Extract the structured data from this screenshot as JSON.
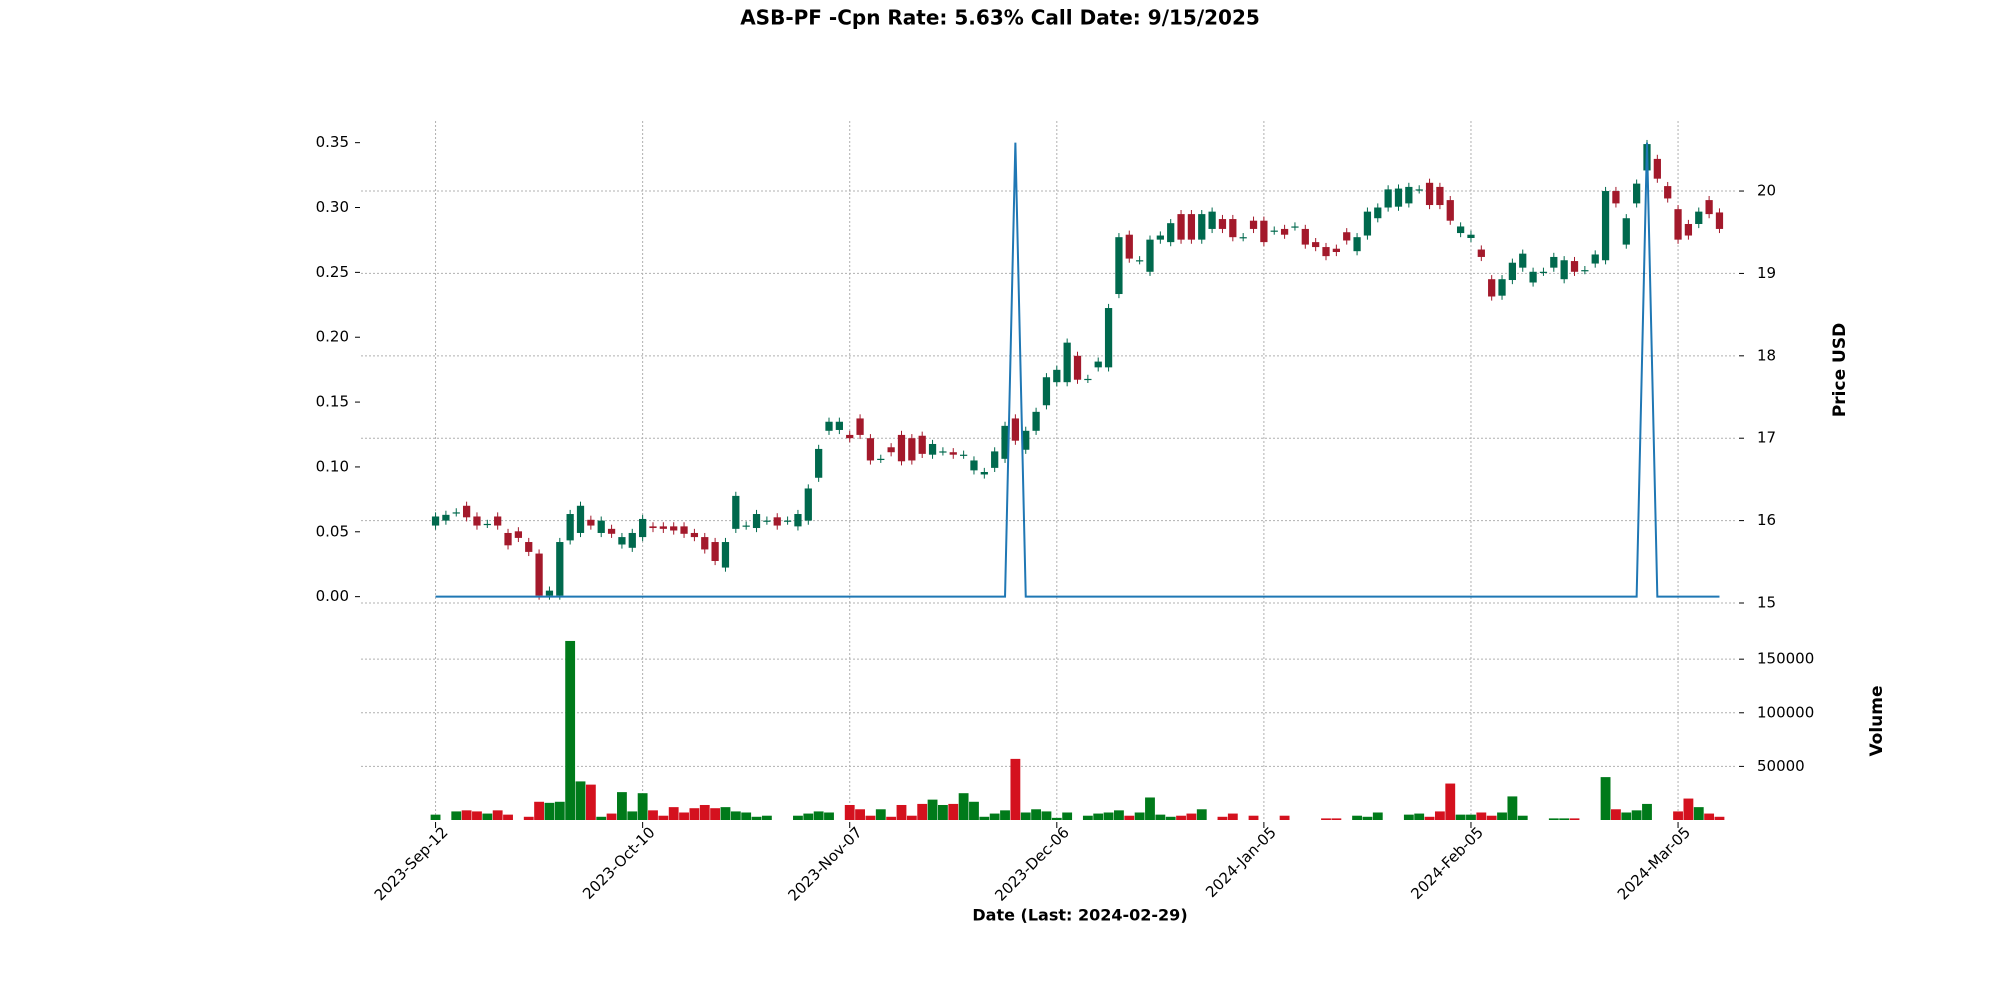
{
  "chart_data": {
    "type": "candlestick",
    "title": "ASB-PF -Cpn Rate: 5.63% Call Date: 9/15/2025",
    "xlabel": "Date   (Last: 2024-02-29)",
    "ylabel": "Price USD",
    "xlim": [
      -7.2,
      125.5
    ],
    "xticks": [
      {
        "value": 0,
        "label": "2023-Sep-12"
      },
      {
        "value": 20,
        "label": "2023-Oct-10"
      },
      {
        "value": 40,
        "label": "2023-Nov-07"
      },
      {
        "value": 60,
        "label": "2023-Dec-06"
      },
      {
        "value": 80,
        "label": "2024-Jan-05"
      },
      {
        "value": 100,
        "label": "2024-Feb-05"
      },
      {
        "value": 120,
        "label": "2024-Mar-05"
      }
    ],
    "ylim": [
      15,
      20.85
    ],
    "yticks": [
      15,
      16,
      17,
      18,
      19,
      20
    ],
    "grid": true,
    "up_color": "#00694d",
    "down_color": "#a3192b",
    "open": [
      15.94,
      16.0,
      16.1,
      16.18,
      16.05,
      15.96,
      16.05,
      15.85,
      15.87,
      15.74,
      15.6,
      15.09,
      15.09,
      15.76,
      15.85,
      16.01,
      15.85,
      15.9,
      15.71,
      15.67,
      15.8,
      15.93,
      15.93,
      15.93,
      15.93,
      15.85,
      15.8,
      15.74,
      15.43,
      15.9,
      15.94,
      15.91,
      16.0,
      16.04,
      16.0,
      15.93,
      16.0,
      16.52,
      17.09,
      17.1,
      17.04,
      17.24,
      17.0,
      16.75,
      16.89,
      17.04,
      17.0,
      17.03,
      16.8,
      16.84,
      16.83,
      16.8,
      16.61,
      16.56,
      16.64,
      16.75,
      17.24,
      16.86,
      17.09,
      17.4,
      17.68,
      17.68,
      18.0,
      17.72,
      17.86,
      17.86,
      18.75,
      19.47,
      19.16,
      19.02,
      19.41,
      19.38,
      19.72,
      19.72,
      19.41,
      19.54,
      19.66,
      19.66,
      19.44,
      19.64,
      19.64,
      19.52,
      19.54,
      19.57,
      19.54,
      19.38,
      19.32,
      19.3,
      19.5,
      19.27,
      19.46,
      19.67,
      19.8,
      19.81,
      19.85,
      20.02,
      20.1,
      20.05,
      19.89,
      19.49,
      19.43,
      19.29,
      18.93,
      18.73,
      18.92,
      19.07,
      18.89,
      19.02,
      19.07,
      18.93,
      19.15,
      19.04,
      19.12,
      19.16,
      20.0,
      19.35,
      19.85,
      20.25,
      20.39,
      20.06,
      19.78,
      19.6,
      19.6,
      19.89,
      19.74
    ],
    "high": [
      16.1,
      16.12,
      16.15,
      16.23,
      16.1,
      16.01,
      16.1,
      15.9,
      15.92,
      15.79,
      15.65,
      15.2,
      15.79,
      16.13,
      16.23,
      16.06,
      16.05,
      15.95,
      15.85,
      15.9,
      16.07,
      15.98,
      15.98,
      15.98,
      15.98,
      15.9,
      15.85,
      15.79,
      15.79,
      16.35,
      15.99,
      16.13,
      16.05,
      16.09,
      16.05,
      16.13,
      16.44,
      16.92,
      17.25,
      17.25,
      17.09,
      17.29,
      17.05,
      16.8,
      16.94,
      17.09,
      17.05,
      17.08,
      16.98,
      16.89,
      16.88,
      16.85,
      16.78,
      16.64,
      16.89,
      17.2,
      17.29,
      17.14,
      17.37,
      17.79,
      17.88,
      18.21,
      18.05,
      17.77,
      17.98,
      18.63,
      19.49,
      19.52,
      19.21,
      19.46,
      19.51,
      19.66,
      19.77,
      19.77,
      19.77,
      19.8,
      19.71,
      19.71,
      19.49,
      19.69,
      19.69,
      19.57,
      19.59,
      19.62,
      19.59,
      19.43,
      19.37,
      19.35,
      19.55,
      19.49,
      19.8,
      19.85,
      20.07,
      20.08,
      20.1,
      20.07,
      20.15,
      20.1,
      19.94,
      19.62,
      19.52,
      19.34,
      18.98,
      18.98,
      19.18,
      19.29,
      19.07,
      19.07,
      19.25,
      19.21,
      19.2,
      19.09,
      19.28,
      20.05,
      20.05,
      19.72,
      20.14,
      20.62,
      20.44,
      20.11,
      19.83,
      19.65,
      19.8,
      19.94,
      19.79
    ],
    "low": [
      15.89,
      15.95,
      16.05,
      15.99,
      15.89,
      15.91,
      15.89,
      15.65,
      15.74,
      15.57,
      15.04,
      15.04,
      15.04,
      15.71,
      15.8,
      15.89,
      15.8,
      15.79,
      15.66,
      15.62,
      15.75,
      15.86,
      15.85,
      15.83,
      15.79,
      15.75,
      15.6,
      15.46,
      15.38,
      15.85,
      15.89,
      15.86,
      15.95,
      15.89,
      15.95,
      15.88,
      15.95,
      16.47,
      17.04,
      17.05,
      16.95,
      16.99,
      16.68,
      16.7,
      16.78,
      16.67,
      16.68,
      16.76,
      16.75,
      16.79,
      16.75,
      16.75,
      16.56,
      16.51,
      16.59,
      16.7,
      16.92,
      16.81,
      17.04,
      17.35,
      17.63,
      17.63,
      17.66,
      17.67,
      17.81,
      17.81,
      18.7,
      19.13,
      19.11,
      18.97,
      19.36,
      19.33,
      19.36,
      19.36,
      19.36,
      19.49,
      19.49,
      19.39,
      19.39,
      19.49,
      19.33,
      19.47,
      19.42,
      19.52,
      19.3,
      19.27,
      19.16,
      19.21,
      19.35,
      19.22,
      19.41,
      19.62,
      19.75,
      19.76,
      19.8,
      19.97,
      19.78,
      19.78,
      19.59,
      19.44,
      19.38,
      19.15,
      18.67,
      18.68,
      18.87,
      19.02,
      18.84,
      18.97,
      19.02,
      18.88,
      18.97,
      18.99,
      19.07,
      19.11,
      19.8,
      19.3,
      19.8,
      20.2,
      20.1,
      19.86,
      19.36,
      19.41,
      19.55,
      19.67,
      19.49
    ],
    "close": [
      16.05,
      16.07,
      16.1,
      16.04,
      15.94,
      15.96,
      15.94,
      15.7,
      15.79,
      15.62,
      15.09,
      15.15,
      15.74,
      16.08,
      16.18,
      15.94,
      16.0,
      15.84,
      15.8,
      15.85,
      16.02,
      15.91,
      15.9,
      15.88,
      15.84,
      15.8,
      15.65,
      15.51,
      15.74,
      16.3,
      15.94,
      16.08,
      16.0,
      15.94,
      16.0,
      16.08,
      16.39,
      16.87,
      17.2,
      17.2,
      17.0,
      17.04,
      16.73,
      16.75,
      16.83,
      16.72,
      16.73,
      16.81,
      16.93,
      16.84,
      16.8,
      16.8,
      16.73,
      16.59,
      16.84,
      17.15,
      16.97,
      17.09,
      17.32,
      17.74,
      17.83,
      18.16,
      17.71,
      17.72,
      17.93,
      18.58,
      19.44,
      19.18,
      19.16,
      19.41,
      19.46,
      19.61,
      19.41,
      19.41,
      19.72,
      19.75,
      19.54,
      19.44,
      19.44,
      19.54,
      19.38,
      19.52,
      19.47,
      19.57,
      19.35,
      19.32,
      19.21,
      19.26,
      19.4,
      19.44,
      19.75,
      19.8,
      20.02,
      20.03,
      20.05,
      20.02,
      19.83,
      19.83,
      19.64,
      19.57,
      19.47,
      19.2,
      18.72,
      18.93,
      19.13,
      19.24,
      19.02,
      19.02,
      19.2,
      19.16,
      19.02,
      19.04,
      19.23,
      20.0,
      19.85,
      19.67,
      20.09,
      20.57,
      20.15,
      19.91,
      19.41,
      19.46,
      19.75,
      19.72,
      19.54
    ],
    "volume": {
      "label": "Volume",
      "ylim": [
        0,
        194000
      ],
      "yticks": [
        50000,
        100000,
        150000
      ],
      "up_color": "#007a1a",
      "down_color": "#d4111e",
      "values": [
        5000,
        null,
        8000,
        9000,
        8000,
        6000,
        9000,
        5000,
        null,
        3000,
        17000,
        16000,
        17000,
        167000,
        36000,
        33000,
        3000,
        6000,
        26000,
        8000,
        25000,
        9000,
        4000,
        12000,
        7000,
        11000,
        14000,
        11000,
        12000,
        8000,
        7000,
        3000,
        4000,
        null,
        null,
        4000,
        6000,
        8000,
        7000,
        null,
        14000,
        10000,
        4000,
        10000,
        3000,
        14000,
        4000,
        15000,
        19000,
        14000,
        15000,
        25000,
        17000,
        3000,
        6000,
        9000,
        57000,
        7000,
        10000,
        8000,
        2000,
        7000,
        null,
        4000,
        6000,
        7000,
        9000,
        4000,
        7000,
        21000,
        5000,
        3000,
        4000,
        6000,
        10000,
        null,
        3000,
        6000,
        null,
        4000,
        null,
        null,
        4000,
        null,
        null,
        null,
        1500,
        1500,
        null,
        4000,
        3000,
        7000,
        null,
        null,
        5000,
        6000,
        3000,
        8000,
        34000,
        5000,
        5000,
        7000,
        4000,
        7000,
        22000,
        4000,
        null,
        null,
        1500,
        1500,
        1500,
        null,
        null,
        40000,
        10000,
        7000,
        9000,
        15000,
        null,
        null,
        8000,
        20000,
        12000,
        6000,
        3000
      ]
    },
    "overlay": {
      "axis": "y2",
      "color": "#1f77b4",
      "y2lim": [
        -0.0049,
        0.3667
      ],
      "y2ticks": [
        {
          "value": 0,
          "label": "0.00"
        },
        {
          "value": 0.05,
          "label": "0.05"
        },
        {
          "value": 0.1,
          "label": "0.10"
        },
        {
          "value": 0.15,
          "label": "0.15"
        },
        {
          "value": 0.2,
          "label": "0.20"
        },
        {
          "value": 0.25,
          "label": "0.25"
        },
        {
          "value": 0.3,
          "label": "0.30"
        },
        {
          "value": 0.35,
          "label": "0.35"
        }
      ],
      "values": [
        0,
        0,
        0,
        0,
        0,
        0,
        0,
        0,
        0,
        0,
        0,
        0,
        0,
        0,
        0,
        0,
        0,
        0,
        0,
        0,
        0,
        0,
        0,
        0,
        0,
        0,
        0,
        0,
        0,
        0,
        0,
        0,
        0,
        0,
        0,
        0,
        0,
        0,
        0,
        0,
        0,
        0,
        0,
        0,
        0,
        0,
        0,
        0,
        0,
        0,
        0,
        0,
        0,
        0,
        0,
        0,
        0.35,
        0,
        0,
        0,
        0,
        0,
        0,
        0,
        0,
        0,
        0,
        0,
        0,
        0,
        0,
        0,
        0,
        0,
        0,
        0,
        0,
        0,
        0,
        0,
        0,
        0,
        0,
        0,
        0,
        0,
        0,
        0,
        0,
        0,
        0,
        0,
        0,
        0,
        0,
        0,
        0,
        0,
        0,
        0,
        0,
        0,
        0,
        0,
        0,
        0,
        0,
        0,
        0,
        0,
        0,
        0,
        0,
        0,
        0,
        0,
        0,
        0.35,
        0,
        0,
        0,
        0,
        0,
        0,
        0
      ]
    }
  }
}
